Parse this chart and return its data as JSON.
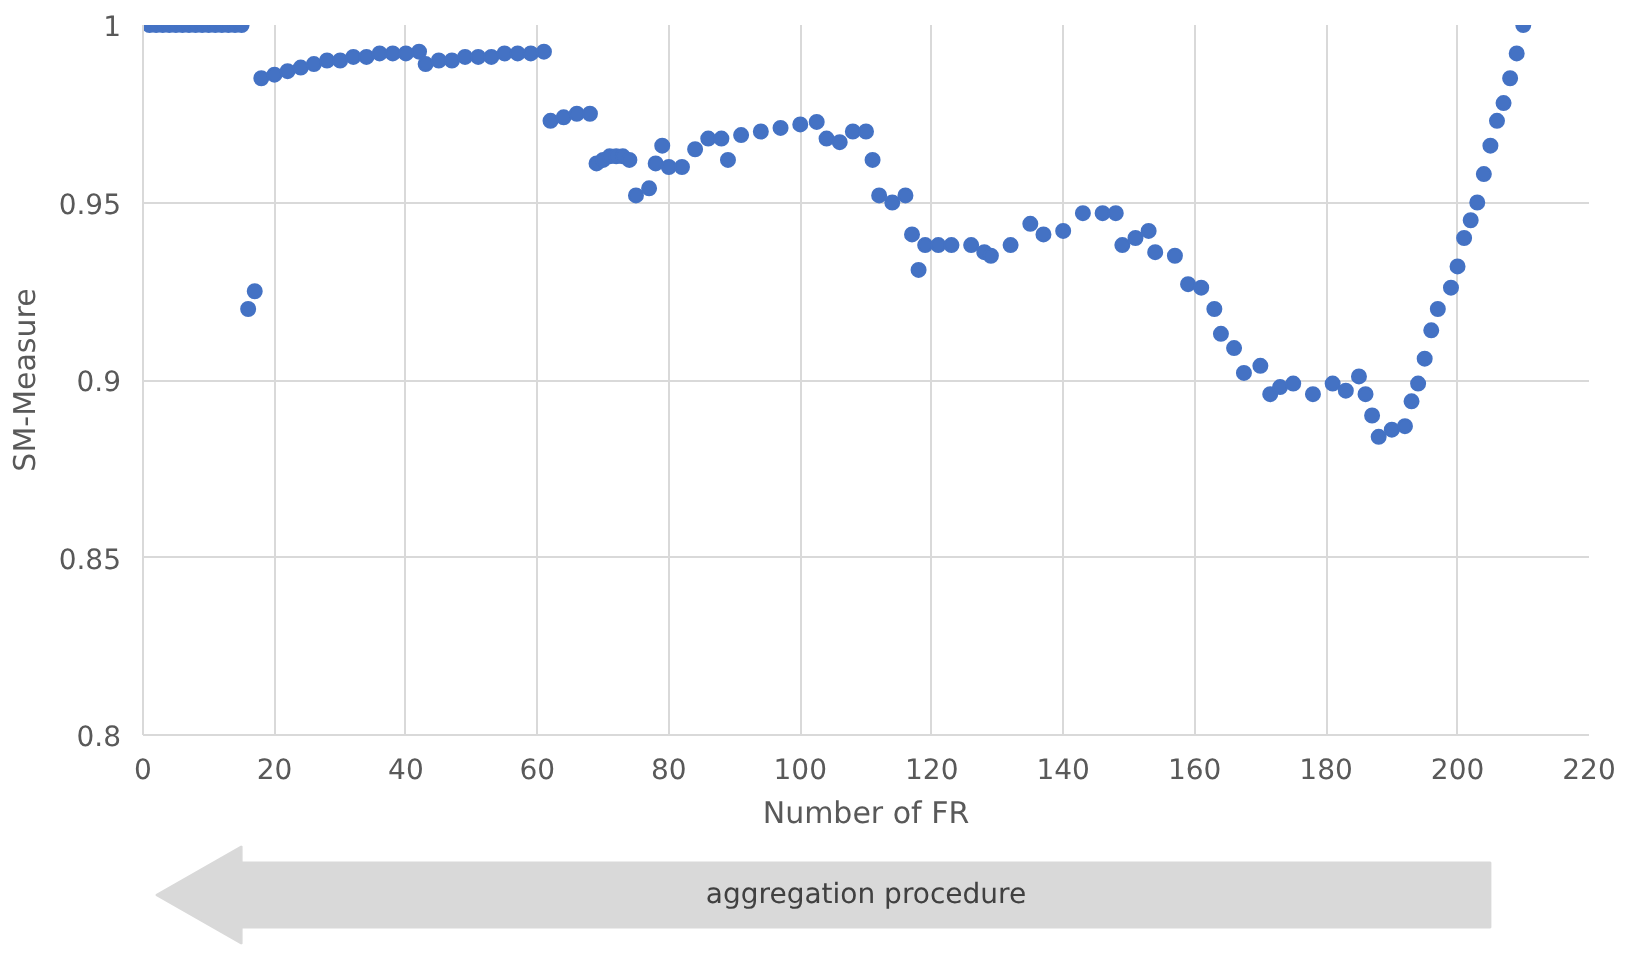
{
  "chart_data": {
    "type": "scatter",
    "xlabel": "Number of FR",
    "ylabel": "SM-Measure",
    "annotations": [
      "aggregation procedure"
    ],
    "marker": "circle",
    "grid": true,
    "xlim": [
      0,
      220
    ],
    "ylim": [
      0.8,
      1
    ],
    "xticks": [
      0,
      20,
      40,
      60,
      80,
      100,
      120,
      140,
      160,
      180,
      200,
      220
    ],
    "yticks": [
      {
        "value": 0.8,
        "label": "0.8"
      },
      {
        "value": 0.85,
        "label": "0.85"
      },
      {
        "value": 0.9,
        "label": "0.9"
      },
      {
        "value": 0.95,
        "label": "0.95"
      },
      {
        "value": 1,
        "label": "1"
      }
    ],
    "series": [
      {
        "color": "#4472c4",
        "x": [
          1,
          2,
          3,
          4,
          5,
          6,
          7,
          8,
          9,
          10,
          11,
          12,
          13,
          14,
          15,
          16,
          17,
          18,
          20,
          22,
          24,
          26,
          28,
          30,
          32,
          34,
          36,
          38,
          40,
          42,
          43,
          45,
          47,
          49,
          51,
          53,
          55,
          57,
          59,
          61,
          62,
          64,
          66,
          68,
          69,
          70,
          71,
          72,
          73,
          74,
          75,
          77,
          78,
          79,
          80,
          82,
          84,
          86,
          88,
          89,
          91,
          94,
          97,
          100,
          102.5,
          104,
          106,
          108,
          110,
          111,
          112,
          114,
          116,
          117,
          118,
          119,
          121,
          123,
          126,
          128,
          129,
          132,
          135,
          137,
          140,
          143,
          146,
          148,
          149,
          151,
          153,
          154,
          157,
          159,
          161,
          163,
          164,
          166,
          167.5,
          170,
          171.5,
          173,
          175,
          178,
          181,
          183,
          185,
          186,
          187,
          188,
          190,
          192,
          193,
          194,
          195,
          196,
          197,
          199,
          200,
          201,
          202,
          203,
          204,
          205,
          206,
          207,
          208,
          209,
          210
        ],
        "values": [
          1,
          1,
          1,
          1,
          1,
          1,
          1,
          1,
          1,
          1,
          1,
          1,
          1,
          1,
          1,
          0.92,
          0.925,
          0.985,
          0.986,
          0.987,
          0.988,
          0.989,
          0.99,
          0.99,
          0.991,
          0.991,
          0.992,
          0.992,
          0.992,
          0.9925,
          0.989,
          0.99,
          0.99,
          0.991,
          0.991,
          0.991,
          0.992,
          0.992,
          0.992,
          0.9925,
          0.973,
          0.974,
          0.975,
          0.975,
          0.961,
          0.962,
          0.963,
          0.963,
          0.963,
          0.962,
          0.952,
          0.954,
          0.961,
          0.966,
          0.96,
          0.96,
          0.965,
          0.968,
          0.968,
          0.962,
          0.969,
          0.97,
          0.971,
          0.972,
          0.9727,
          0.968,
          0.967,
          0.97,
          0.97,
          0.962,
          0.952,
          0.95,
          0.952,
          0.941,
          0.931,
          0.938,
          0.938,
          0.938,
          0.938,
          0.936,
          0.935,
          0.938,
          0.944,
          0.941,
          0.942,
          0.947,
          0.947,
          0.947,
          0.938,
          0.94,
          0.942,
          0.936,
          0.935,
          0.927,
          0.926,
          0.92,
          0.913,
          0.909,
          0.902,
          0.904,
          0.896,
          0.898,
          0.899,
          0.896,
          0.899,
          0.897,
          0.901,
          0.896,
          0.89,
          0.884,
          0.886,
          0.887,
          0.894,
          0.899,
          0.906,
          0.914,
          0.92,
          0.926,
          0.932,
          0.94,
          0.945,
          0.95,
          0.958,
          0.966,
          0.973,
          0.978,
          0.985,
          0.992,
          1
        ]
      }
    ]
  }
}
